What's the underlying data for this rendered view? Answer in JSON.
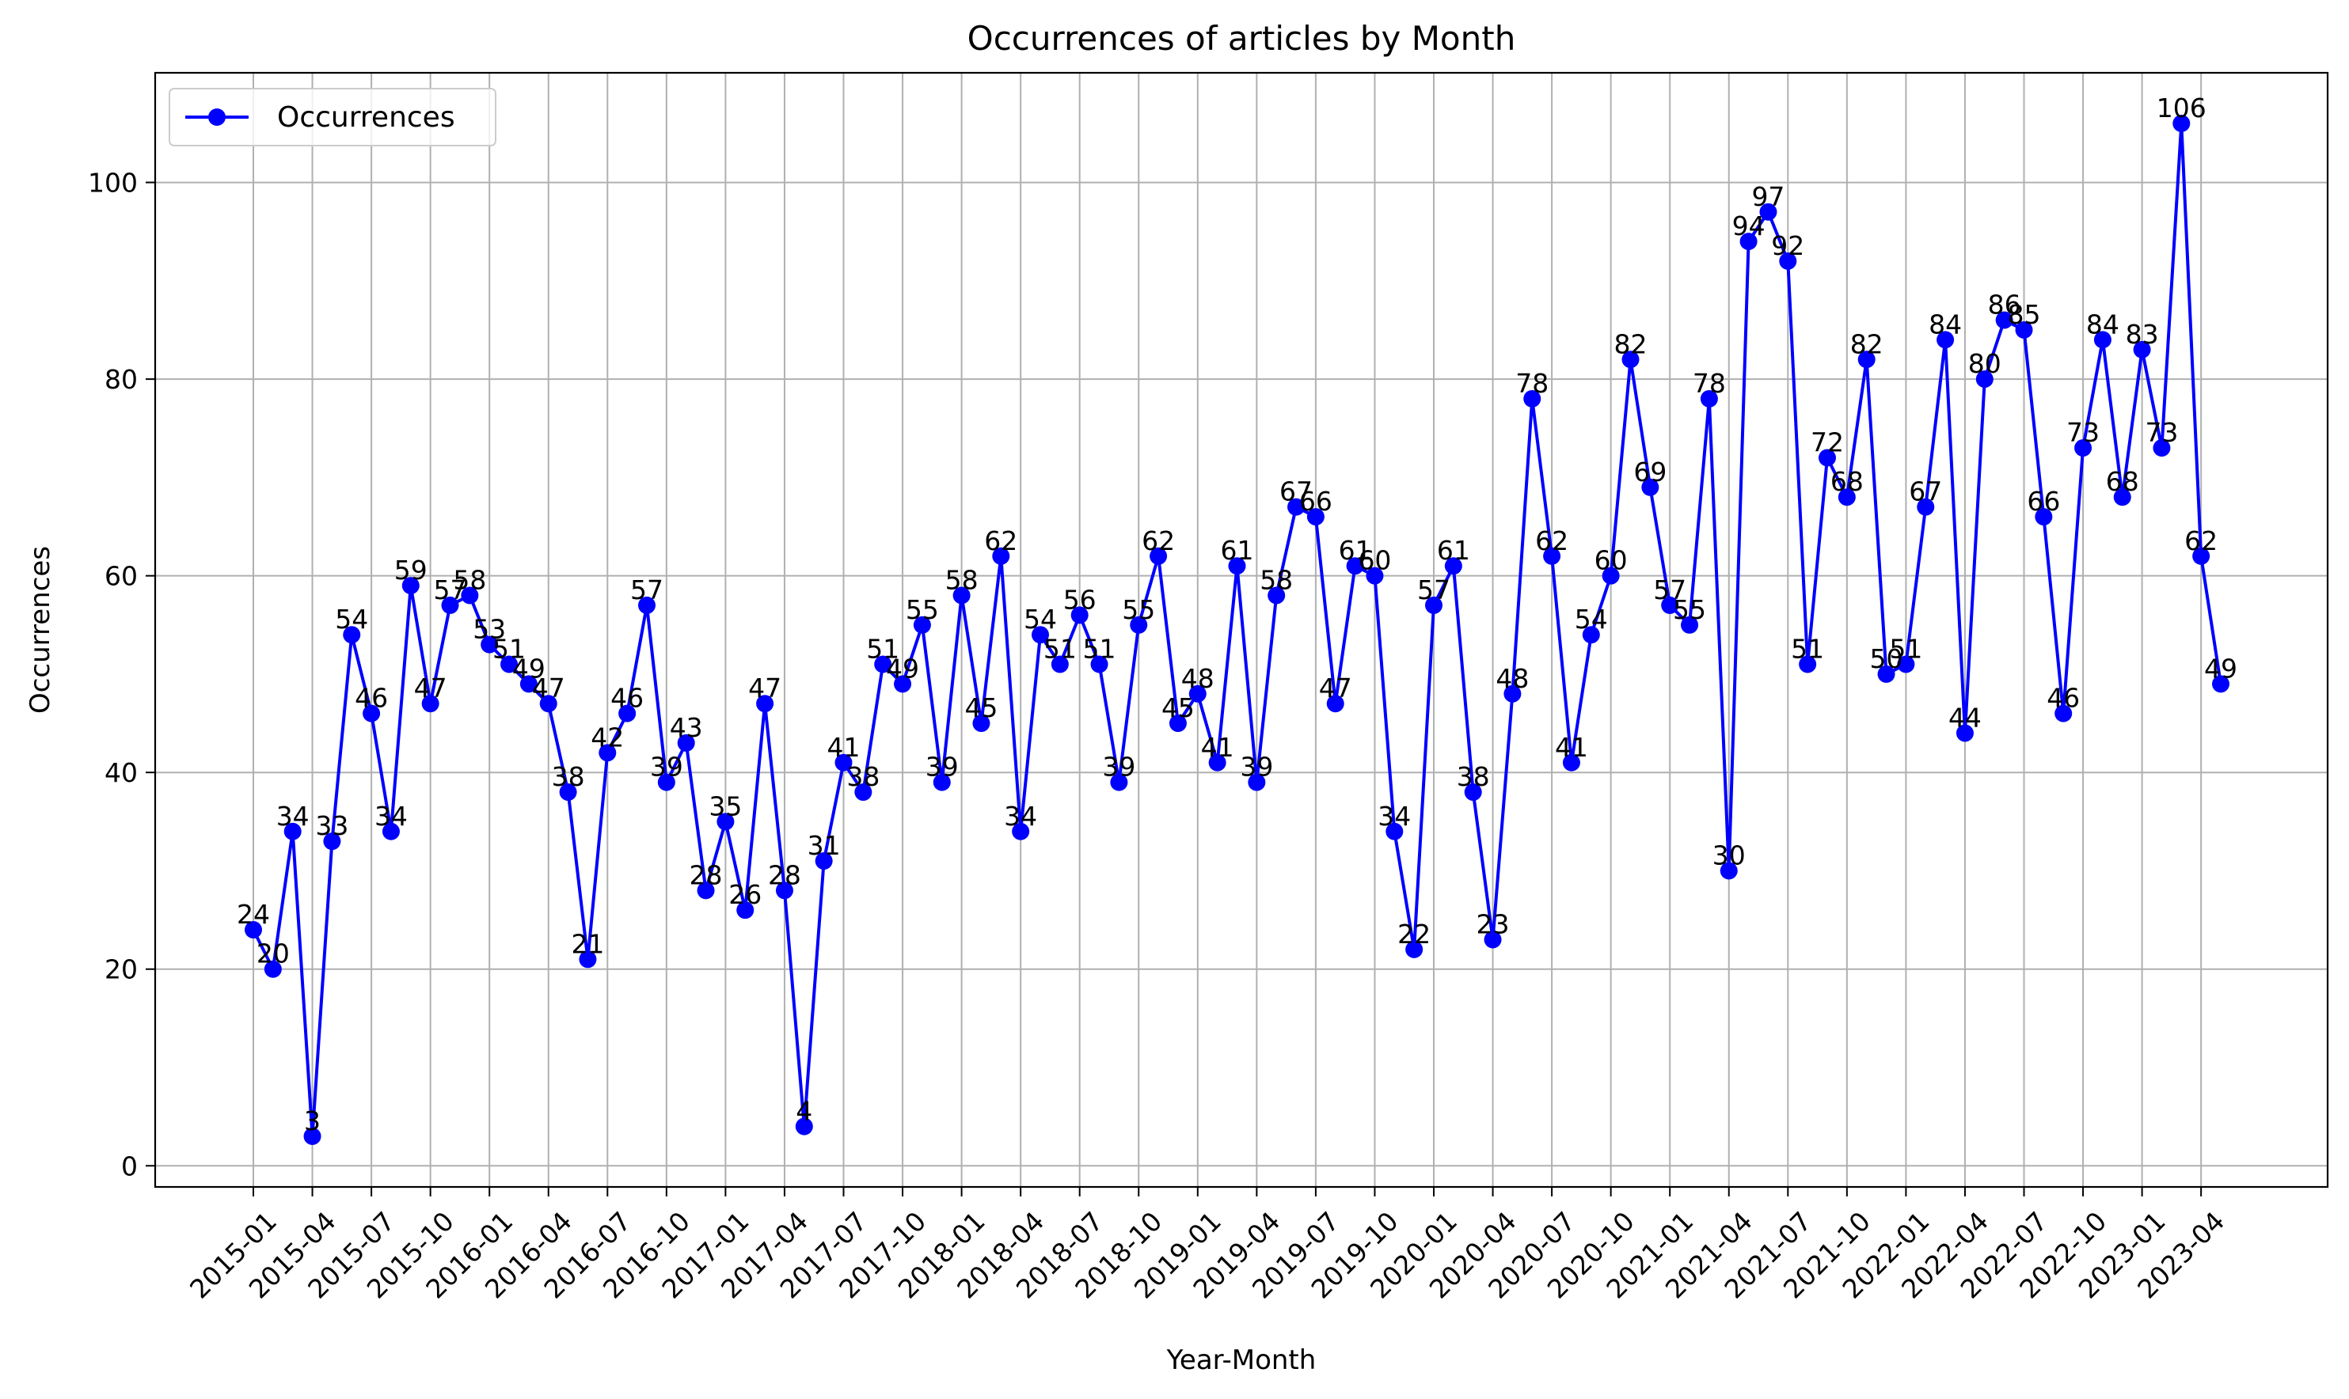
{
  "chart_data": {
    "type": "line",
    "title": "Occurrences of articles by Month",
    "xlabel": "Year-Month",
    "ylabel": "Occurrences",
    "x": [
      "2015-01",
      "2015-02",
      "2015-03",
      "2015-04",
      "2015-05",
      "2015-06",
      "2015-07",
      "2015-08",
      "2015-09",
      "2015-10",
      "2015-11",
      "2015-12",
      "2016-01",
      "2016-02",
      "2016-03",
      "2016-04",
      "2016-05",
      "2016-06",
      "2016-07",
      "2016-08",
      "2016-09",
      "2016-10",
      "2016-11",
      "2016-12",
      "2017-01",
      "2017-02",
      "2017-03",
      "2017-04",
      "2017-05",
      "2017-06",
      "2017-07",
      "2017-08",
      "2017-09",
      "2017-10",
      "2017-11",
      "2017-12",
      "2018-01",
      "2018-02",
      "2018-03",
      "2018-04",
      "2018-05",
      "2018-06",
      "2018-07",
      "2018-08",
      "2018-09",
      "2018-10",
      "2018-11",
      "2018-12",
      "2019-01",
      "2019-02",
      "2019-03",
      "2019-04",
      "2019-05",
      "2019-06",
      "2019-07",
      "2019-08",
      "2019-09",
      "2019-10",
      "2019-11",
      "2019-12",
      "2020-01",
      "2020-02",
      "2020-03",
      "2020-04",
      "2020-05",
      "2020-06",
      "2020-07",
      "2020-08",
      "2020-09",
      "2020-10",
      "2020-11",
      "2020-12",
      "2021-01",
      "2021-02",
      "2021-03",
      "2021-04",
      "2021-05",
      "2021-06",
      "2021-07",
      "2021-08",
      "2021-09",
      "2021-10",
      "2021-11",
      "2021-12",
      "2022-01",
      "2022-02",
      "2022-03",
      "2022-04",
      "2022-05",
      "2022-06",
      "2022-07",
      "2022-08",
      "2022-09",
      "2022-10",
      "2022-11",
      "2022-12",
      "2023-01",
      "2023-02",
      "2023-03",
      "2023-04",
      "2023-05"
    ],
    "series": [
      {
        "name": "Occurrences",
        "color": "#0000ff",
        "values": [
          24,
          20,
          34,
          3,
          33,
          54,
          46,
          34,
          59,
          47,
          57,
          58,
          53,
          51,
          49,
          47,
          38,
          21,
          42,
          46,
          57,
          39,
          43,
          28,
          35,
          26,
          47,
          28,
          4,
          31,
          41,
          38,
          51,
          49,
          55,
          39,
          58,
          45,
          62,
          34,
          54,
          51,
          56,
          51,
          39,
          55,
          62,
          45,
          48,
          41,
          61,
          39,
          58,
          67,
          66,
          47,
          61,
          60,
          34,
          22,
          57,
          61,
          38,
          23,
          48,
          78,
          62,
          41,
          54,
          60,
          82,
          69,
          57,
          55,
          78,
          30,
          94,
          97,
          92,
          51,
          72,
          68,
          82,
          50,
          51,
          67,
          84,
          44,
          80,
          86,
          85,
          66,
          46,
          73,
          84,
          68,
          83,
          73,
          106,
          62,
          49
        ]
      }
    ],
    "x_ticks": [
      "2015-01",
      "2015-04",
      "2015-07",
      "2015-10",
      "2016-01",
      "2016-04",
      "2016-07",
      "2016-10",
      "2017-01",
      "2017-04",
      "2017-07",
      "2017-10",
      "2018-01",
      "2018-04",
      "2018-07",
      "2018-10",
      "2019-01",
      "2019-04",
      "2019-07",
      "2019-10",
      "2020-01",
      "2020-04",
      "2020-07",
      "2020-10",
      "2021-01",
      "2021-04",
      "2021-07",
      "2021-10",
      "2022-01",
      "2022-04",
      "2022-07",
      "2022-10",
      "2023-01",
      "2023-04"
    ],
    "y_ticks": [
      0,
      20,
      40,
      60,
      80,
      100
    ],
    "ylim": [
      -2.15,
      111.15
    ],
    "grid": true,
    "legend": "upper left"
  }
}
